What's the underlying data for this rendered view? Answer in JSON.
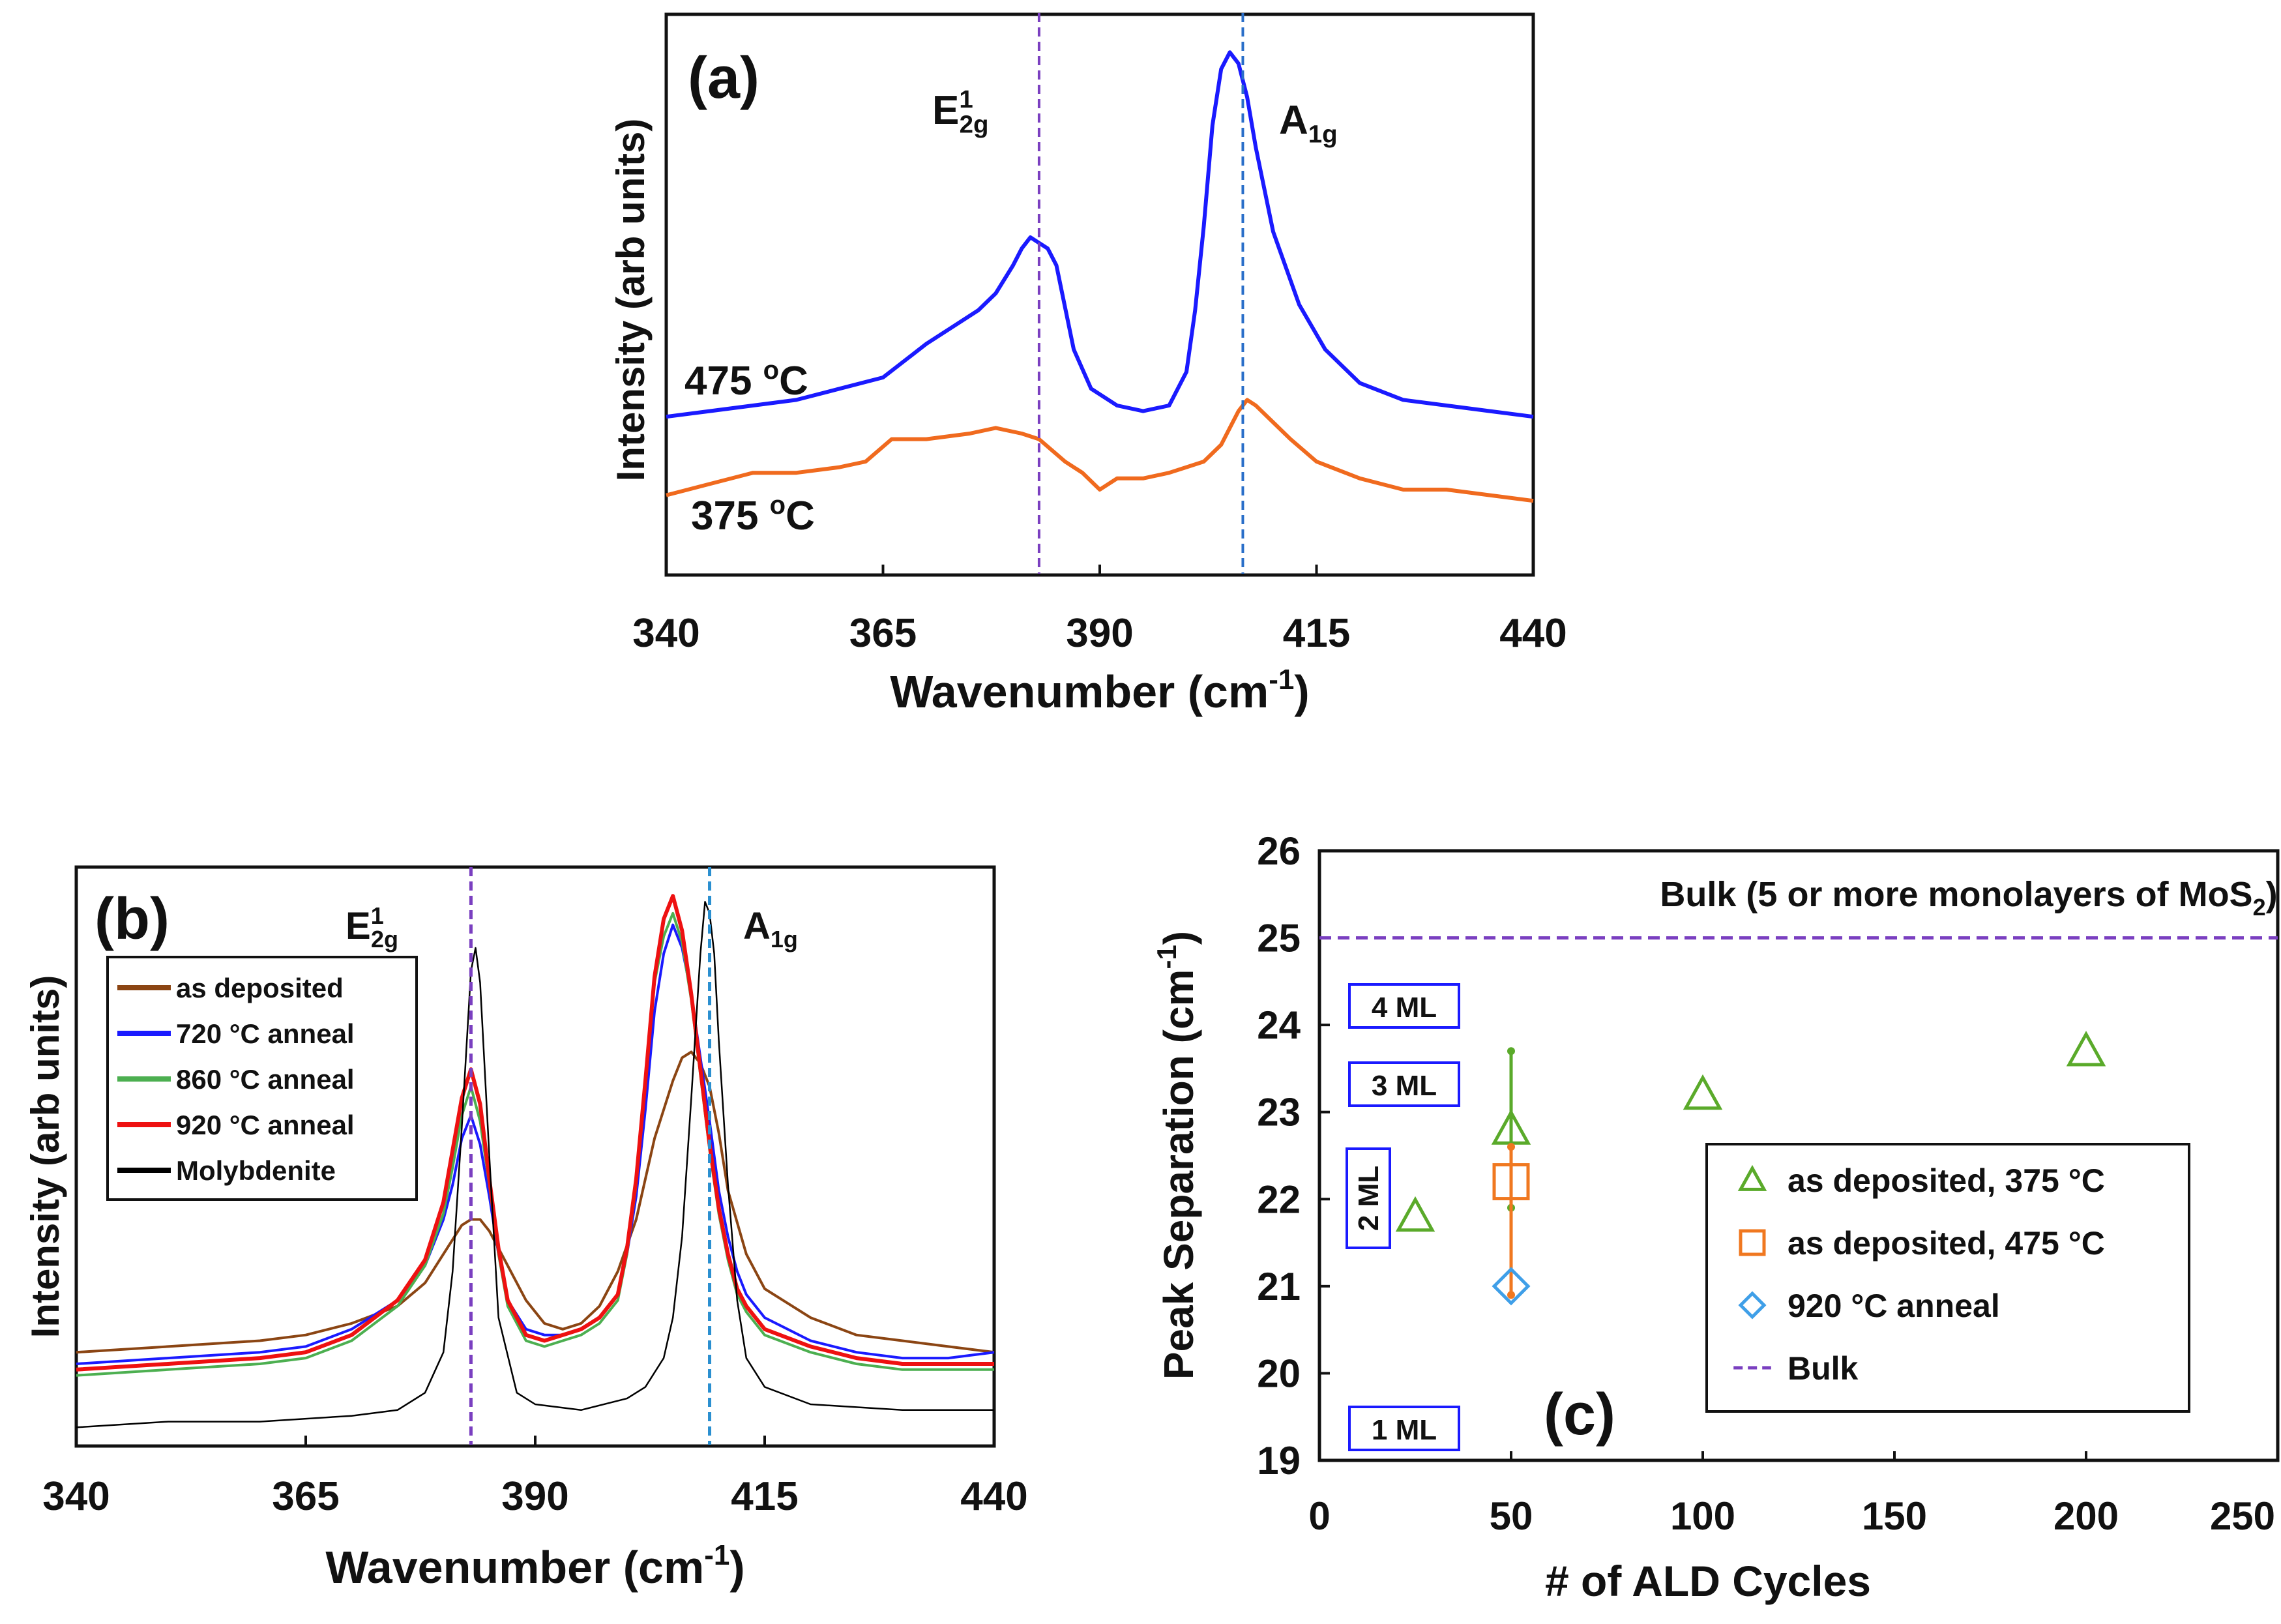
{
  "chart_data": [
    {
      "panel": "a",
      "type": "line",
      "label": "(a)",
      "xlabel": "Wavenumber",
      "xlabel_unit": "(cm",
      "xlabel_sup": "-1",
      "xlabel_close": ")",
      "ylabel": "Intensity (arb units)",
      "xlim": [
        340,
        440
      ],
      "ylim": [
        0,
        100
      ],
      "xticks": [
        "340",
        "365",
        "390",
        "415",
        "440"
      ],
      "peaks": [
        {
          "x": 383,
          "color": "#7a3fc0",
          "main": "E",
          "sup": "1",
          "sub": "2g"
        },
        {
          "x": 406.5,
          "color": "#2a6fc9",
          "main": "A",
          "sup": "",
          "sub": "1g"
        }
      ],
      "series": [
        {
          "name": "475 °C",
          "label_main": "475 ",
          "label_sup": "o",
          "label_end": "C",
          "color": "#1a1aff",
          "x": [
            340,
            345,
            350,
            355,
            360,
            365,
            370,
            373,
            376,
            378,
            380,
            381,
            382,
            383,
            384,
            385,
            387,
            389,
            392,
            395,
            398,
            400,
            401,
            402,
            403,
            404,
            405,
            406,
            407,
            408,
            410,
            413,
            416,
            420,
            425,
            430,
            435,
            440
          ],
          "y": [
            28,
            29,
            30,
            31,
            33,
            35,
            41,
            44,
            47,
            50,
            55,
            58,
            60,
            59,
            58,
            55,
            40,
            33,
            30,
            29,
            30,
            36,
            47,
            62,
            80,
            90,
            93,
            91,
            85,
            76,
            61,
            48,
            40,
            34,
            31,
            30,
            29,
            28
          ]
        },
        {
          "name": "375 °C",
          "label_main": "375 ",
          "label_sup": "o",
          "label_end": "C",
          "color": "#f06a1e",
          "x": [
            340,
            345,
            350,
            355,
            360,
            363,
            366,
            370,
            375,
            378,
            381,
            383,
            386,
            388,
            390,
            392,
            395,
            398,
            400,
            402,
            404,
            405,
            406,
            407,
            408,
            410,
            412,
            415,
            420,
            425,
            430,
            435,
            440
          ],
          "y": [
            14,
            16,
            18,
            18,
            19,
            20,
            24,
            24,
            25,
            26,
            25,
            24,
            20,
            18,
            15,
            17,
            17,
            18,
            19,
            20,
            23,
            26,
            29,
            31,
            30,
            27,
            24,
            20,
            17,
            15,
            15,
            14,
            13
          ]
        }
      ]
    },
    {
      "panel": "b",
      "type": "line",
      "label": "(b)",
      "xlabel": "Wavenumber",
      "xlabel_unit": "(cm",
      "xlabel_sup": "-1",
      "xlabel_close": ")",
      "ylabel": "Intensity (arb units)",
      "xlim": [
        340,
        440
      ],
      "ylim": [
        0,
        100
      ],
      "xticks": [
        "340",
        "365",
        "390",
        "415",
        "440"
      ],
      "peaks": [
        {
          "x": 383,
          "color": "#7a3fc0",
          "main": "E",
          "sup": "1",
          "sub": "2g"
        },
        {
          "x": 409,
          "color": "#2a8fd0",
          "main": "A",
          "sup": "",
          "sub": "1g"
        }
      ],
      "series": [
        {
          "name": "as deposited",
          "color": "#8b4513",
          "width": 4,
          "x": [
            340,
            350,
            360,
            365,
            370,
            375,
            378,
            380,
            382,
            383,
            384,
            385,
            387,
            389,
            391,
            393,
            395,
            397,
            399,
            401,
            403,
            405,
            406,
            407,
            408,
            409,
            410,
            411,
            413,
            415,
            420,
            425,
            430,
            435,
            440
          ],
          "y": [
            16,
            17,
            18,
            19,
            21,
            24,
            28,
            33,
            38,
            39,
            39,
            37,
            31,
            25,
            21,
            20,
            21,
            24,
            30,
            39,
            53,
            63,
            67,
            68,
            66,
            62,
            54,
            44,
            33,
            27,
            22,
            19,
            18,
            17,
            16
          ]
        },
        {
          "name": "720 °C anneal",
          "color": "#1a1aff",
          "width": 4,
          "x": [
            340,
            350,
            360,
            365,
            370,
            375,
            378,
            380,
            381,
            382,
            383,
            384,
            385,
            386,
            387,
            389,
            391,
            393,
            395,
            397,
            399,
            400,
            401,
            402,
            403,
            404,
            405,
            406,
            407,
            408,
            409,
            410,
            411,
            412,
            413,
            415,
            420,
            425,
            430,
            435,
            440
          ],
          "y": [
            14,
            15,
            16,
            17,
            20,
            25,
            31,
            39,
            45,
            53,
            57,
            52,
            43,
            33,
            25,
            20,
            19,
            19,
            20,
            22,
            26,
            33,
            43,
            58,
            75,
            85,
            90,
            86,
            78,
            67,
            56,
            44,
            36,
            30,
            26,
            22,
            18,
            16,
            15,
            15,
            16
          ]
        },
        {
          "name": "860 °C anneal",
          "color": "#4caf50",
          "width": 4,
          "x": [
            340,
            350,
            360,
            365,
            370,
            375,
            378,
            380,
            381,
            382,
            383,
            384,
            385,
            386,
            387,
            389,
            391,
            393,
            395,
            397,
            399,
            400,
            401,
            402,
            403,
            404,
            405,
            406,
            407,
            408,
            409,
            410,
            411,
            412,
            413,
            415,
            420,
            425,
            430,
            435,
            440
          ],
          "y": [
            12,
            13,
            14,
            15,
            18,
            24,
            31,
            40,
            48,
            57,
            62,
            56,
            45,
            33,
            24,
            18,
            17,
            18,
            19,
            21,
            25,
            33,
            45,
            62,
            80,
            88,
            92,
            87,
            77,
            64,
            51,
            40,
            32,
            26,
            23,
            19,
            16,
            14,
            13,
            13,
            13
          ]
        },
        {
          "name": "920 °C anneal",
          "color": "#ee1111",
          "width": 6,
          "x": [
            340,
            350,
            360,
            365,
            370,
            375,
            378,
            380,
            381,
            382,
            383,
            384,
            385,
            386,
            387,
            389,
            391,
            393,
            395,
            397,
            399,
            400,
            401,
            402,
            403,
            404,
            405,
            406,
            407,
            408,
            409,
            410,
            411,
            412,
            413,
            415,
            420,
            425,
            430,
            435,
            440
          ],
          "y": [
            13,
            14,
            15,
            16,
            19,
            25,
            32,
            42,
            51,
            60,
            65,
            59,
            46,
            34,
            25,
            19,
            18,
            19,
            20,
            22,
            26,
            34,
            46,
            63,
            81,
            91,
            95,
            89,
            78,
            65,
            52,
            41,
            33,
            27,
            24,
            20,
            17,
            15,
            14,
            14,
            14
          ]
        },
        {
          "name": "Molybdenite",
          "color": "#000000",
          "width": 2.5,
          "x": [
            340,
            350,
            360,
            370,
            375,
            378,
            380,
            381,
            382,
            383,
            383.5,
            384,
            385,
            386,
            388,
            390,
            395,
            400,
            402,
            404,
            405,
            406,
            407,
            408,
            408.5,
            409,
            409.5,
            410,
            411,
            412,
            413,
            415,
            420,
            430,
            440
          ],
          "y": [
            3,
            4,
            4,
            5,
            6,
            9,
            16,
            30,
            55,
            82,
            86,
            80,
            50,
            22,
            9,
            7,
            6,
            8,
            10,
            15,
            22,
            36,
            60,
            85,
            94,
            92,
            85,
            70,
            45,
            25,
            15,
            10,
            7,
            6,
            6
          ]
        }
      ]
    },
    {
      "panel": "c",
      "type": "scatter",
      "label": "(c)",
      "xlabel": "# of ALD Cycles",
      "ylabel": "Peak Separation (cm",
      "ylabel_sup": "-1",
      "ylabel_close": ")",
      "xlim": [
        0,
        250
      ],
      "ylim": [
        19,
        26
      ],
      "xticks": [
        "0",
        "50",
        "100",
        "150",
        "200",
        "250"
      ],
      "yticks": [
        "19",
        "20",
        "21",
        "22",
        "23",
        "24",
        "25",
        "26"
      ],
      "bulk_line": {
        "y": 25,
        "color": "#7a3fc0",
        "text_main": "Bulk (5 or more monolayers of MoS",
        "text_sub": "2",
        "text_end": ")"
      },
      "ml_boxes": [
        "4 ML",
        "3 ML",
        "2 ML",
        "1 ML"
      ],
      "legend": [
        {
          "name": "as deposited, 375 °C",
          "marker": "triangle",
          "color": "#5aaa2a"
        },
        {
          "name": "as deposited, 475 °C",
          "marker": "square",
          "color": "#f07820"
        },
        {
          "name": "920 °C anneal",
          "marker": "diamond",
          "color": "#3f9fe8"
        },
        {
          "name": "Bulk",
          "marker": "dash",
          "color": "#7a3fc0"
        }
      ],
      "series": [
        {
          "name": "as deposited, 375 °C",
          "marker": "triangle",
          "color": "#5aaa2a",
          "points": [
            {
              "x": 25,
              "y": 21.8
            },
            {
              "x": 50,
              "y": 22.8,
              "err_low": 21.9,
              "err_high": 23.7
            },
            {
              "x": 100,
              "y": 23.2
            },
            {
              "x": 200,
              "y": 23.7
            }
          ]
        },
        {
          "name": "as deposited, 475 °C",
          "marker": "square",
          "color": "#f07820",
          "points": [
            {
              "x": 50,
              "y": 22.2,
              "err_low": 20.9,
              "err_high": 22.6
            }
          ]
        },
        {
          "name": "920 °C anneal",
          "marker": "diamond",
          "color": "#3f9fe8",
          "points": [
            {
              "x": 50,
              "y": 21.0
            }
          ]
        }
      ]
    }
  ]
}
